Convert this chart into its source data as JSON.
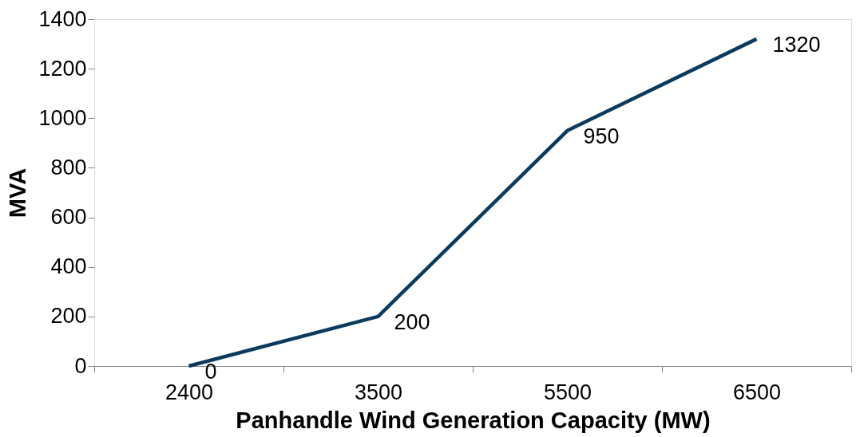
{
  "chart_data": {
    "type": "line",
    "xlabel": "Panhandle Wind Generation Capacity (MW)",
    "ylabel": "MVA",
    "categories": [
      "2400",
      "3500",
      "5500",
      "6500"
    ],
    "series": [
      {
        "color": "#0b3a5c",
        "values": [
          0,
          200,
          950,
          1320
        ]
      }
    ],
    "ylim": [
      0,
      1400
    ],
    "yticks": [
      0,
      200,
      400,
      600,
      800,
      1000,
      1200,
      1400
    ],
    "data_labels": true,
    "grid": false,
    "marker": "none",
    "line_style": "solid"
  }
}
